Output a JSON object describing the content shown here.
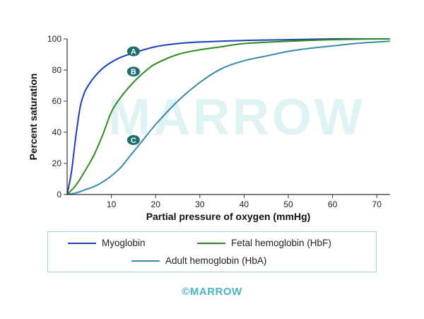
{
  "watermark": "MARROW",
  "footer_logo": "©MARROW",
  "colors": {
    "myoglobin": "#1c3fb8",
    "fetal": "#2e8b1f",
    "adult": "#3a8aa8",
    "badge": "#1f6e6e"
  },
  "chart_data": {
    "type": "line",
    "xlabel": "Partial pressure of oxygen (mmHg)",
    "ylabel": "Percent saturation",
    "xlim": [
      0,
      73
    ],
    "ylim": [
      0,
      100
    ],
    "xticks": [
      10,
      20,
      30,
      40,
      50,
      60,
      70
    ],
    "yticks": [
      0,
      20,
      40,
      60,
      80,
      100
    ],
    "grid": false,
    "legend_position": "bottom",
    "series": [
      {
        "name": "Myoglobin",
        "badge": "A",
        "badge_at": [
          15,
          92
        ],
        "x": [
          0,
          1,
          2,
          3,
          4,
          5,
          6,
          8,
          10,
          12,
          15,
          20,
          25,
          30,
          40,
          50,
          60,
          70,
          73
        ],
        "y": [
          0,
          15,
          38,
          57,
          66,
          71,
          75,
          81,
          85,
          88,
          91,
          95,
          97,
          98,
          99,
          99.5,
          100,
          100,
          100
        ]
      },
      {
        "name": "Fetal hemoglobin (HbF)",
        "badge": "B",
        "badge_at": [
          15,
          79
        ],
        "x": [
          0,
          2,
          4,
          6,
          8,
          10,
          12,
          14,
          16,
          18,
          20,
          25,
          30,
          35,
          40,
          50,
          60,
          70,
          73
        ],
        "y": [
          0,
          6,
          15,
          25,
          38,
          53,
          62,
          69,
          75,
          80,
          84,
          90,
          93,
          95,
          97,
          98.5,
          99.5,
          100,
          100
        ]
      },
      {
        "name": "Adult hemoglobin (HbA)",
        "badge": "C",
        "badge_at": [
          15,
          35
        ],
        "x": [
          0,
          2,
          4,
          6,
          8,
          10,
          12,
          14,
          16,
          18,
          20,
          25,
          30,
          35,
          40,
          45,
          50,
          55,
          60,
          65,
          70,
          73
        ],
        "y": [
          0,
          1,
          3,
          5,
          8,
          12,
          17,
          24,
          31,
          38,
          45,
          60,
          72,
          81,
          86,
          89,
          92,
          94,
          95.5,
          97,
          98,
          98.5
        ]
      }
    ]
  },
  "legend": {
    "myoglobin": "Myoglobin",
    "fetal": "Fetal hemoglobin (HbF)",
    "adult": "Adult hemoglobin (HbA)"
  }
}
